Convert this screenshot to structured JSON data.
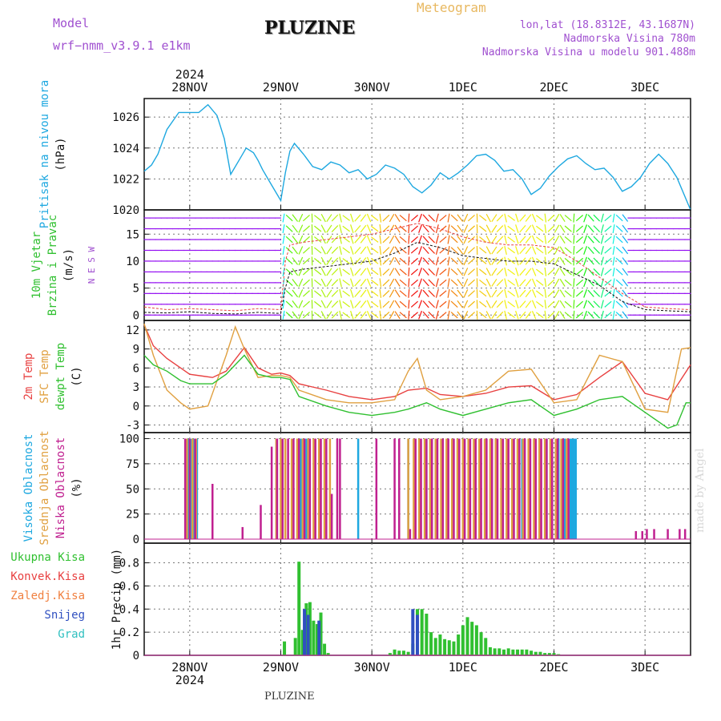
{
  "header": {
    "title": "PLUZINE",
    "subtitle": "Meteogram",
    "model_label": "Model",
    "model_value": "wrf−nmm_v3.9.1  e1km",
    "lonlat": "lon,lat (18.8312E, 43.1687N)",
    "elevation": "Nadmorska Visina 780m",
    "elevation_model": "Nadmorska Visina u modelu 901.488m"
  },
  "footer": "PLUZINE",
  "credit": "made by Angel",
  "colors": {
    "pressure": "#1ea8e0",
    "temp2m": "#e84040",
    "sfc": "#e0a040",
    "dewpt": "#30c030",
    "high": "#1ea8e0",
    "mid": "#e0a040",
    "low": "#c02090",
    "total": "#30c030",
    "conv": "#e84040",
    "frozen": "#f08040",
    "snow": "#3050c0",
    "grad": "#30c0c0",
    "grid": "#777777"
  },
  "chart_data": {
    "type": "meteogram",
    "x_dates": [
      "28NOV",
      "29NOV",
      "30NOV",
      "1DEC",
      "2DEC",
      "3DEC"
    ],
    "x_year": "2024",
    "x_range_days": [
      -0.5,
      5.5
    ],
    "panels": [
      {
        "id": "pressure",
        "type": "line",
        "ylabel": [
          "Pritisak na nivou mora",
          "(hPa)"
        ],
        "yticks": [
          1020,
          1022,
          1024,
          1026
        ],
        "ylim": [
          1020,
          1027.2
        ],
        "series": [
          {
            "color_key": "pressure",
            "x": [
              -0.5,
              -0.42,
              -0.35,
              -0.25,
              -0.12,
              0,
              0.1,
              0.2,
              0.3,
              0.38,
              0.45,
              0.55,
              0.62,
              0.7,
              0.75,
              0.8,
              0.9,
              1.0,
              1.05,
              1.1,
              1.15,
              1.25,
              1.35,
              1.45,
              1.55,
              1.65,
              1.75,
              1.85,
              1.95,
              2.05,
              2.15,
              2.25,
              2.35,
              2.45,
              2.55,
              2.65,
              2.75,
              2.85,
              2.95,
              3.05,
              3.15,
              3.25,
              3.35,
              3.45,
              3.55,
              3.65,
              3.75,
              3.85,
              3.95,
              4.05,
              4.15,
              4.25,
              4.35,
              4.45,
              4.55,
              4.65,
              4.75,
              4.85,
              4.95,
              5.05,
              5.15,
              5.25,
              5.35,
              5.5
            ],
            "y": [
              1022.5,
              1022.9,
              1023.6,
              1025.2,
              1026.3,
              1026.3,
              1026.3,
              1026.8,
              1026.1,
              1024.6,
              1022.3,
              1023.3,
              1024.0,
              1023.7,
              1023.2,
              1022.6,
              1021.6,
              1020.6,
              1022.4,
              1023.8,
              1024.3,
              1023.6,
              1022.8,
              1022.6,
              1023.1,
              1022.9,
              1022.4,
              1022.6,
              1022.0,
              1022.3,
              1022.9,
              1022.7,
              1022.3,
              1021.5,
              1021.1,
              1021.6,
              1022.4,
              1022.0,
              1022.4,
              1022.9,
              1023.5,
              1023.6,
              1023.2,
              1022.5,
              1022.6,
              1022.0,
              1021.0,
              1021.4,
              1022.2,
              1022.8,
              1023.3,
              1023.5,
              1023.0,
              1022.6,
              1022.7,
              1022.1,
              1021.2,
              1021.5,
              1022.1,
              1023.0,
              1023.6,
              1023.0,
              1022.1,
              1020.0
            ]
          }
        ]
      },
      {
        "id": "wind",
        "type": "wind",
        "ylabel": [
          "10m Vjetar",
          "Brzina i Pravac",
          "(m/s)"
        ],
        "compass": "N  E  S  W",
        "yticks": [
          0,
          5,
          10,
          15
        ],
        "ylim": [
          -1,
          19.5
        ],
        "speed": {
          "x": [
            -0.5,
            -0.25,
            0,
            0.25,
            0.5,
            0.75,
            1.0,
            1.05,
            1.1,
            1.25,
            1.5,
            1.75,
            2.0,
            2.25,
            2.5,
            2.75,
            3.0,
            3.25,
            3.5,
            3.75,
            4.0,
            4.25,
            4.5,
            4.75,
            5.0,
            5.25,
            5.5
          ],
          "y": [
            0.5,
            0.4,
            0.6,
            0.3,
            0.2,
            0.5,
            0.3,
            5.0,
            8.0,
            8.5,
            9.0,
            9.5,
            10.0,
            11.5,
            13.5,
            12.5,
            11.0,
            10.5,
            10.0,
            10.0,
            9.5,
            7.5,
            5.5,
            2.5,
            1.0,
            0.8,
            0.6
          ],
          "gust_y": [
            1.5,
            1.0,
            1.2,
            1.0,
            0.8,
            1.2,
            1.0,
            10.0,
            13.0,
            13.5,
            14.0,
            14.5,
            15.0,
            16.0,
            17.0,
            16.0,
            14.5,
            13.5,
            13.0,
            13.0,
            12.5,
            10.0,
            7.0,
            4.0,
            1.5,
            1.2,
            1.0
          ]
        }
      },
      {
        "id": "temperature",
        "type": "line",
        "ylabel": [
          "2m Temp",
          "SFC Temp",
          "dewpt Temp",
          "(C)"
        ],
        "yticks": [
          -3,
          0,
          3,
          6,
          9,
          12
        ],
        "ylim": [
          -4.2,
          13.5
        ],
        "series": [
          {
            "name": "2m Temp",
            "color_key": "temp2m",
            "x": [
              -0.5,
              -0.4,
              -0.25,
              -0.1,
              0,
              0.25,
              0.4,
              0.6,
              0.75,
              0.9,
              1.0,
              1.1,
              1.2,
              1.5,
              1.75,
              2.0,
              2.25,
              2.4,
              2.6,
              2.75,
              3.0,
              3.25,
              3.5,
              3.75,
              4.0,
              4.25,
              4.5,
              4.75,
              5.0,
              5.25,
              5.5
            ],
            "y": [
              12.8,
              9.5,
              7.5,
              6.0,
              5.0,
              4.5,
              5.5,
              9.2,
              6.0,
              5.0,
              5.2,
              4.8,
              3.5,
              2.5,
              1.5,
              1.0,
              1.5,
              2.5,
              2.8,
              1.8,
              1.5,
              2.0,
              3.0,
              3.2,
              1.0,
              1.8,
              4.5,
              7.0,
              2.0,
              1.0,
              6.5
            ]
          },
          {
            "name": "SFC Temp",
            "color_key": "sfc",
            "x": [
              -0.5,
              -0.4,
              -0.25,
              -0.1,
              0,
              0.2,
              0.4,
              0.5,
              0.6,
              0.75,
              0.9,
              1.0,
              1.1,
              1.2,
              1.5,
              1.75,
              2.0,
              2.25,
              2.4,
              2.5,
              2.6,
              2.75,
              3.0,
              3.25,
              3.5,
              3.75,
              4.0,
              4.25,
              4.5,
              4.75,
              5.0,
              5.25,
              5.4,
              5.5
            ],
            "y": [
              13.0,
              8.0,
              2.5,
              0.5,
              -0.5,
              0.0,
              8.0,
              12.5,
              9.0,
              4.5,
              4.8,
              4.8,
              4.5,
              2.5,
              1.0,
              0.5,
              0.5,
              1.0,
              5.5,
              7.5,
              2.5,
              1.0,
              1.5,
              2.5,
              5.5,
              5.8,
              0.5,
              1.0,
              8.0,
              7.0,
              -0.5,
              -1.0,
              9.0,
              9.2
            ]
          },
          {
            "name": "dewpt Temp",
            "color_key": "dewpt",
            "x": [
              -0.5,
              -0.4,
              -0.25,
              -0.1,
              0,
              0.25,
              0.4,
              0.6,
              0.75,
              0.9,
              1.0,
              1.1,
              1.2,
              1.5,
              1.75,
              2.0,
              2.25,
              2.4,
              2.6,
              2.75,
              3.0,
              3.25,
              3.5,
              3.75,
              4.0,
              4.25,
              4.5,
              4.75,
              5.0,
              5.25,
              5.35,
              5.45,
              5.5
            ],
            "y": [
              8.0,
              6.5,
              5.5,
              4.0,
              3.5,
              3.5,
              5.0,
              8.0,
              5.0,
              4.5,
              4.5,
              4.2,
              1.5,
              0.0,
              -1.0,
              -1.5,
              -1.0,
              -0.5,
              0.5,
              -0.5,
              -1.5,
              -0.5,
              0.5,
              1.0,
              -1.5,
              -0.5,
              1.0,
              1.5,
              -1.0,
              -3.5,
              -3.0,
              0.5,
              0.5
            ]
          }
        ]
      },
      {
        "id": "clouds",
        "type": "bar",
        "ylabel": [
          "Visoka Oblacnost",
          "Srednja Oblacnost",
          "Niska Oblacnost",
          "(%)"
        ],
        "yticks": [
          0,
          25,
          50,
          75,
          100
        ],
        "ylim": [
          -4,
          106
        ],
        "series": [
          {
            "name": "Visoka Oblacnost",
            "color_key": "high",
            "x": [
              -0.04,
              -0.01,
              0.02,
              0.05,
              0.08,
              -0.02,
              1.22,
              1.28,
              1.85,
              2.4,
              2.6,
              3.65,
              3.92,
              4.05,
              4.12,
              4.18,
              4.2,
              4.22,
              4.24
            ],
            "y": [
              100,
              100,
              100,
              100,
              100,
              100,
              100,
              100,
              100,
              100,
              100,
              100,
              100,
              100,
              100,
              100,
              100,
              100,
              100
            ]
          },
          {
            "name": "Srednja Oblacnost",
            "color_key": "mid",
            "x": [
              -0.03,
              0.03,
              0.07,
              0.95,
              1.0,
              1.05,
              1.12,
              1.18,
              1.24,
              1.3,
              1.36,
              1.42,
              1.48,
              1.54,
              2.4,
              2.46,
              2.52,
              2.58,
              2.64,
              2.7,
              2.76,
              2.82,
              2.88,
              2.94,
              3.0,
              3.06,
              3.12,
              3.18,
              3.24,
              3.3,
              3.36,
              3.42,
              3.48,
              3.54,
              3.6,
              3.66,
              3.72,
              3.78,
              3.84,
              3.9,
              3.96,
              4.02,
              4.08,
              4.14
            ],
            "y": [
              100,
              100,
              100,
              100,
              100,
              100,
              100,
              100,
              100,
              100,
              100,
              100,
              100,
              100,
              100,
              100,
              100,
              100,
              100,
              100,
              100,
              100,
              100,
              100,
              100,
              100,
              100,
              100,
              100,
              100,
              100,
              100,
              100,
              100,
              100,
              100,
              100,
              100,
              100,
              100,
              100,
              100,
              100,
              100
            ]
          },
          {
            "name": "Niska Oblacnost",
            "color_key": "low",
            "x": [
              -0.05,
              0.0,
              0.06,
              0.25,
              0.58,
              0.78,
              0.9,
              0.96,
              1.02,
              1.08,
              1.14,
              1.2,
              1.26,
              1.32,
              1.38,
              1.44,
              1.5,
              1.56,
              1.62,
              1.65,
              2.05,
              2.25,
              2.3,
              2.42,
              2.48,
              2.54,
              2.6,
              2.66,
              2.72,
              2.78,
              2.84,
              2.9,
              2.96,
              3.02,
              3.08,
              3.14,
              3.2,
              3.26,
              3.32,
              3.38,
              3.44,
              3.5,
              3.56,
              3.62,
              3.68,
              3.74,
              3.8,
              3.86,
              3.92,
              3.98,
              4.04,
              4.1,
              4.16,
              4.9,
              4.97,
              5.02,
              5.1,
              5.25,
              5.38,
              5.44
            ],
            "y": [
              100,
              100,
              100,
              55,
              12,
              34,
              92,
              100,
              100,
              100,
              100,
              100,
              100,
              100,
              100,
              100,
              100,
              45,
              100,
              100,
              100,
              100,
              100,
              10,
              100,
              100,
              100,
              100,
              100,
              100,
              100,
              100,
              100,
              100,
              100,
              100,
              100,
              100,
              100,
              100,
              100,
              100,
              100,
              100,
              100,
              100,
              100,
              100,
              100,
              100,
              100,
              100,
              100,
              8,
              8,
              10,
              10,
              10,
              10,
              10
            ]
          }
        ]
      },
      {
        "id": "precip",
        "type": "bar",
        "ylabel": [
          "1hr Precip (mm)"
        ],
        "legend": [
          "Ukupna Kisa",
          "Konvek.Kisa",
          "Zaledj.Kisa",
          "Snijeg",
          "Grad"
        ],
        "yticks": [
          0,
          0.2,
          0.4,
          0.6,
          0.8
        ],
        "ylim": [
          0,
          0.97
        ],
        "series": [
          {
            "name": "Ukupna Kisa",
            "color_key": "total",
            "x": [
              1.04,
              1.16,
              1.2,
              1.24,
              1.28,
              1.32,
              1.36,
              1.4,
              1.44,
              1.48,
              1.52,
              2.2,
              2.25,
              2.3,
              2.35,
              2.4,
              2.45,
              2.5,
              2.55,
              2.6,
              2.65,
              2.7,
              2.75,
              2.8,
              2.85,
              2.9,
              2.95,
              3.0,
              3.05,
              3.1,
              3.15,
              3.2,
              3.25,
              3.3,
              3.35,
              3.4,
              3.45,
              3.5,
              3.55,
              3.6,
              3.65,
              3.7,
              3.75,
              3.8,
              3.85,
              3.9,
              3.95,
              4.0,
              4.05
            ],
            "y": [
              0.12,
              0.15,
              0.81,
              0.22,
              0.45,
              0.46,
              0.3,
              0.27,
              0.37,
              0.1,
              0.02,
              0.02,
              0.05,
              0.04,
              0.04,
              0.03,
              0.1,
              0.4,
              0.4,
              0.36,
              0.2,
              0.15,
              0.18,
              0.14,
              0.13,
              0.12,
              0.18,
              0.26,
              0.33,
              0.29,
              0.26,
              0.2,
              0.15,
              0.07,
              0.06,
              0.06,
              0.05,
              0.06,
              0.05,
              0.05,
              0.05,
              0.05,
              0.04,
              0.03,
              0.03,
              0.02,
              0.02,
              0.02,
              0.01
            ]
          },
          {
            "name": "Snijeg",
            "color_key": "snow",
            "x": [
              1.26,
              1.3,
              1.42,
              2.45,
              2.5
            ],
            "y": [
              0.4,
              0.35,
              0.3,
              0.4,
              0.35
            ]
          }
        ]
      }
    ]
  }
}
